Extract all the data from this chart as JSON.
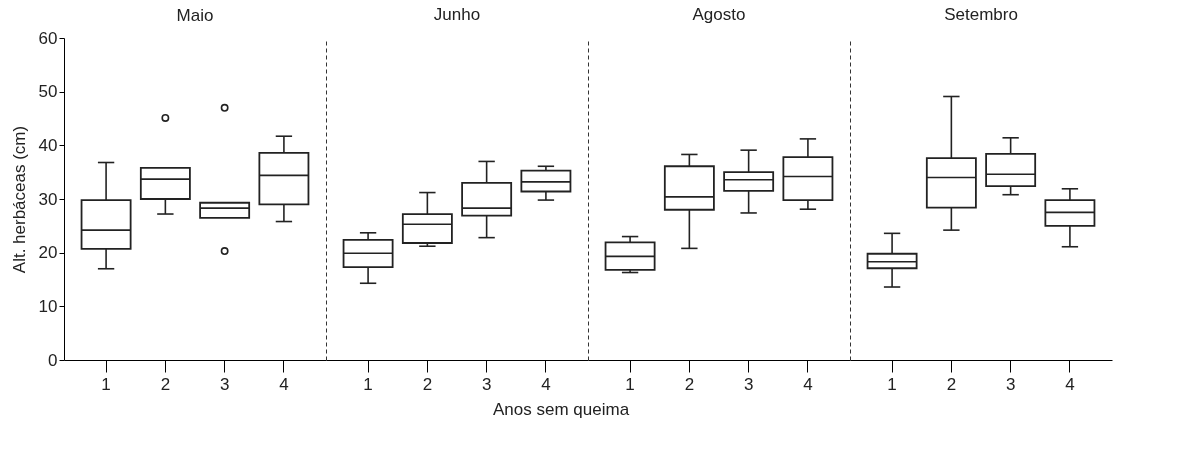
{
  "chart_data": [
    {
      "type": "box",
      "title": "Maio",
      "ylabel": "Alt. herbáceas (cm)",
      "categories": [
        "1",
        "2",
        "3",
        "4"
      ],
      "ylim": [
        0,
        60
      ],
      "yticks": [
        0,
        10,
        20,
        30,
        40,
        50,
        60
      ],
      "boxes": [
        {
          "low": 17,
          "q1": 20.7,
          "median": 24.2,
          "q3": 29.8,
          "high": 36.8
        },
        {
          "low": 27.2,
          "q1": 30,
          "median": 33.7,
          "q3": 35.8,
          "high": 35.8,
          "outliers": [
            45.1
          ]
        },
        {
          "low": 26.5,
          "q1": 26.5,
          "median": 28.3,
          "q3": 29.3,
          "high": 29.3,
          "outliers": [
            47,
            20.3
          ]
        },
        {
          "low": 25.8,
          "q1": 29,
          "median": 34.4,
          "q3": 38.6,
          "high": 41.7
        }
      ]
    },
    {
      "type": "box",
      "title": "Junho",
      "xlabel": "Anos sem queima",
      "categories": [
        "1",
        "2",
        "3",
        "4"
      ],
      "ylim": [
        0,
        60
      ],
      "tick_labels": "x",
      "boxes": [
        {
          "low": 14.3,
          "q1": 17.3,
          "median": 19.9,
          "q3": 22.4,
          "high": 23.7
        },
        {
          "low": 21.2,
          "q1": 21.8,
          "median": 25.3,
          "q3": 27.2,
          "high": 31.2
        },
        {
          "low": 22.8,
          "q1": 26.9,
          "median": 28.3,
          "q3": 33,
          "high": 37
        },
        {
          "low": 29.8,
          "q1": 31.4,
          "median": 33.2,
          "q3": 35.3,
          "high": 36.1
        }
      ]
    },
    {
      "type": "box",
      "title": "Agosto",
      "categories": [
        "1",
        "2",
        "3",
        "4"
      ],
      "ylim": [
        0,
        60
      ],
      "tick_labels": "x",
      "boxes": [
        {
          "low": 16.3,
          "q1": 16.8,
          "median": 19.3,
          "q3": 21.9,
          "high": 23
        },
        {
          "low": 20.8,
          "q1": 28,
          "median": 30.4,
          "q3": 36.1,
          "high": 38.3
        },
        {
          "low": 27.4,
          "q1": 31.5,
          "median": 33.6,
          "q3": 35,
          "high": 39.1
        },
        {
          "low": 28.1,
          "q1": 29.8,
          "median": 34.2,
          "q3": 37.8,
          "high": 41.2
        }
      ]
    },
    {
      "type": "box",
      "title": "Setembro",
      "categories": [
        "1",
        "2",
        "3",
        "4"
      ],
      "ylim": [
        0,
        60
      ],
      "tick_labels": "x",
      "boxes": [
        {
          "low": 13.6,
          "q1": 17.1,
          "median": 18.3,
          "q3": 19.8,
          "high": 23.6
        },
        {
          "low": 24.2,
          "q1": 28.4,
          "median": 34,
          "q3": 37.6,
          "high": 49.1
        },
        {
          "low": 30.8,
          "q1": 32.4,
          "median": 34.6,
          "q3": 38.4,
          "high": 41.4
        },
        {
          "low": 21.1,
          "q1": 25,
          "median": 27.5,
          "q3": 29.8,
          "high": 31.9
        }
      ]
    }
  ]
}
